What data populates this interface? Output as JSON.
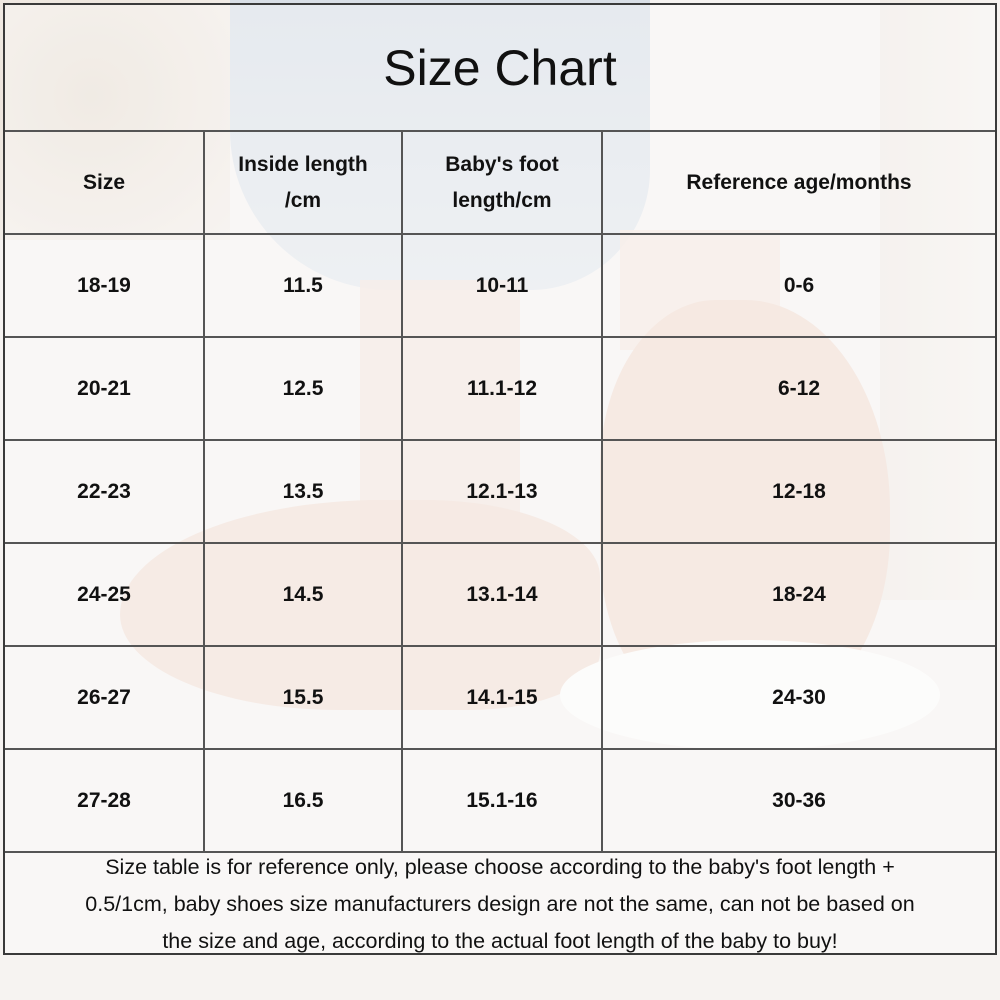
{
  "title": "Size Chart",
  "headers": [
    "Size",
    "Inside length /cm",
    "Baby's foot length/cm",
    "Reference age/months"
  ],
  "header_lines": [
    [
      "Size"
    ],
    [
      "Inside length",
      "/cm"
    ],
    [
      "Baby's foot",
      "length/cm"
    ],
    [
      "Reference age/months"
    ]
  ],
  "rows": [
    [
      "18-19",
      "11.5",
      "10-11",
      "0-6"
    ],
    [
      "20-21",
      "12.5",
      "11.1-12",
      "6-12"
    ],
    [
      "22-23",
      "13.5",
      "12.1-13",
      "12-18"
    ],
    [
      "24-25",
      "14.5",
      "13.1-14",
      "18-24"
    ],
    [
      "26-27",
      "15.5",
      "14.1-15",
      "24-30"
    ],
    [
      "27-28",
      "16.5",
      "15.1-16",
      "30-36"
    ]
  ],
  "note_lines": [
    "Size table is for reference only, please choose according to the baby's foot length +",
    "0.5/1cm, baby shoes size manufacturers design are not the same, can not be based on",
    "the size and age, according to the actual foot length of the baby to buy!"
  ]
}
